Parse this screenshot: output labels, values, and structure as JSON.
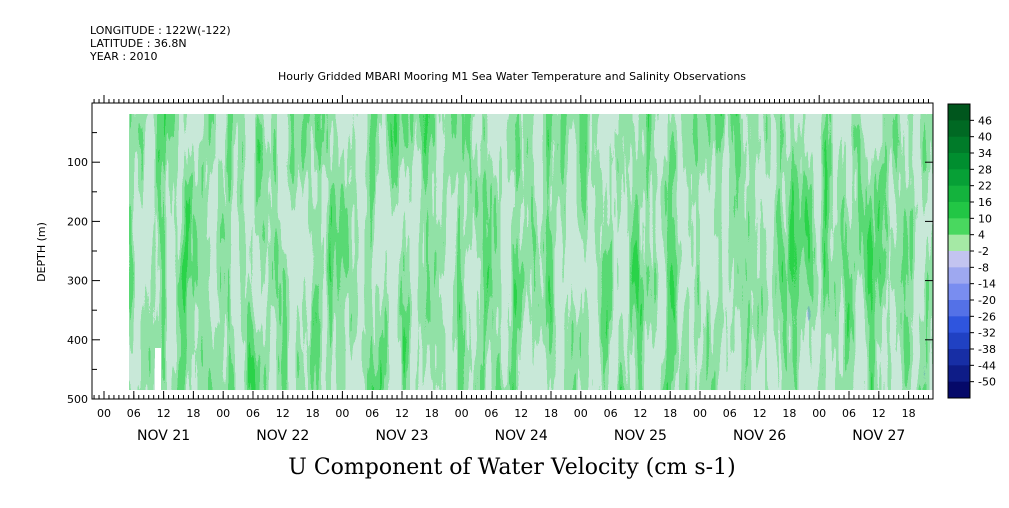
{
  "meta": {
    "longitude": "LONGITUDE : 122W(-122)",
    "latitude": "LATITUDE : 36.8N",
    "year": "YEAR : 2010"
  },
  "chart_data": {
    "type": "heatmap",
    "title": "Hourly Gridded MBARI Mooring M1 Sea Water Temperature and Salinity Observations",
    "xlabel": "U Component of Water Velocity (cm s-1)",
    "ylabel": "DEPTH (m)",
    "yticks": [
      "100",
      "200",
      "300",
      "400",
      "500"
    ],
    "ylim": [
      500,
      0
    ],
    "xticks": [
      "00",
      "06",
      "12",
      "18",
      "00",
      "06",
      "12",
      "18",
      "00",
      "06",
      "12",
      "18",
      "00",
      "06",
      "12",
      "18",
      "00",
      "06",
      "12",
      "18",
      "00",
      "06",
      "12",
      "18",
      "00",
      "06",
      "12",
      "18"
    ],
    "dates": [
      "NOV 21",
      "NOV 22",
      "NOV 23",
      "NOV 24",
      "NOV 25",
      "NOV 26",
      "NOV 27"
    ],
    "colorbar": {
      "labels": [
        "46",
        "40",
        "34",
        "28",
        "22",
        "16",
        "10",
        "4",
        "-2",
        "-8",
        "-14",
        "-20",
        "-26",
        "-32",
        "-38",
        "-44",
        "-50"
      ],
      "range": [
        -50,
        50
      ],
      "colors": {
        "max": "#004d1a",
        "mid_positive": "#2bd34a",
        "near_zero": "#c8f0c8",
        "near_zero_negative": "#c8c8f0",
        "mid_negative": "#5a6ae8",
        "min": "#00005a"
      }
    },
    "legend_position": "right",
    "grid": false
  }
}
